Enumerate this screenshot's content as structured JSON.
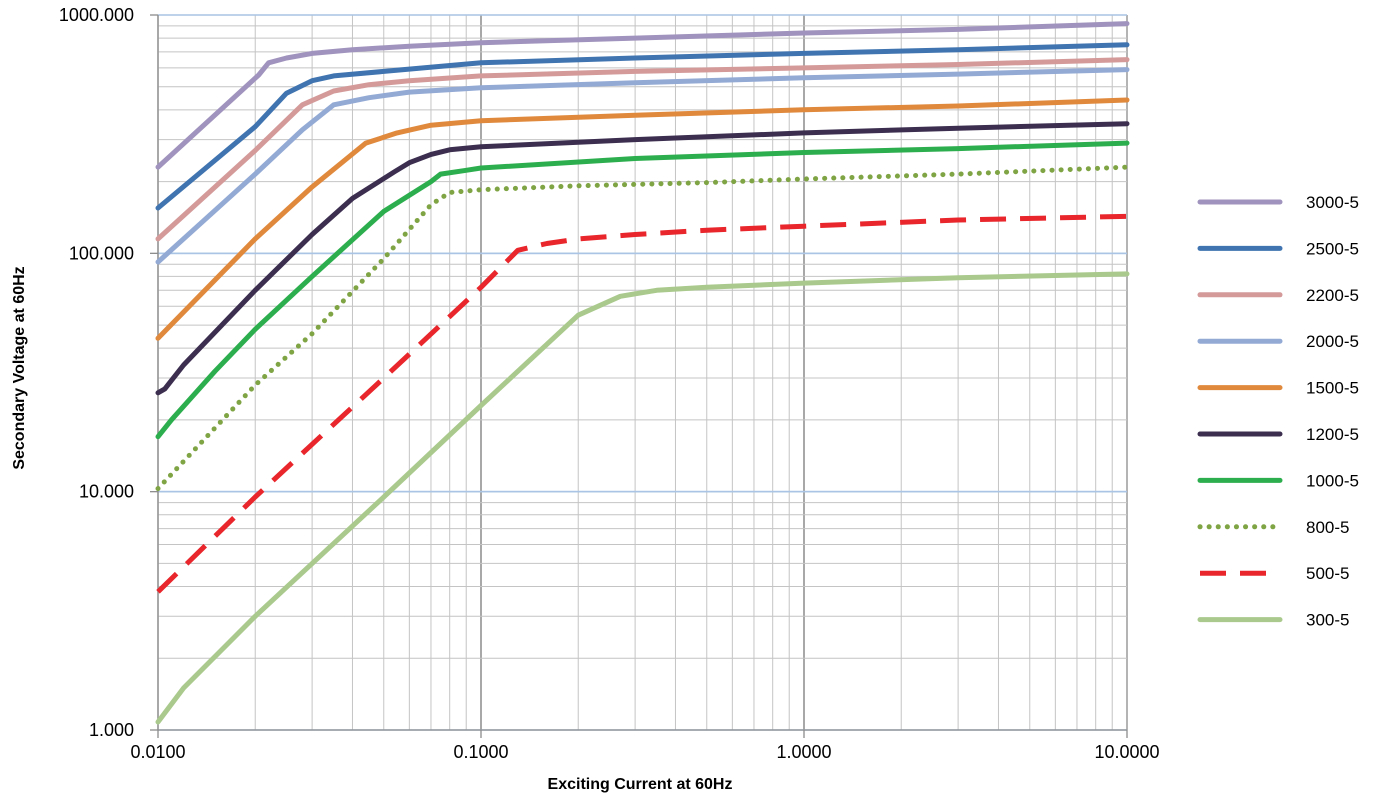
{
  "chart_data": {
    "type": "line",
    "title": "",
    "xlabel": "Exciting Current at 60Hz",
    "ylabel": "Secondary Voltage at 60Hz",
    "x_scale": "log",
    "y_scale": "log",
    "xlim": [
      0.01,
      10
    ],
    "ylim": [
      1,
      1000
    ],
    "x_ticks": [
      {
        "value": 0.01,
        "label": "0.0100"
      },
      {
        "value": 0.1,
        "label": "0.1000"
      },
      {
        "value": 1,
        "label": "1.0000"
      },
      {
        "value": 10,
        "label": "10.0000"
      }
    ],
    "y_ticks": [
      {
        "value": 1,
        "label": "1.000"
      },
      {
        "value": 10,
        "label": "10.000"
      },
      {
        "value": 100,
        "label": "100.000"
      },
      {
        "value": 1000,
        "label": "1000.000"
      }
    ],
    "grid": true,
    "legend_position": "right",
    "series": [
      {
        "name": "3000-5",
        "color": "#A093BD",
        "style": "solid",
        "x": [
          0.01,
          0.0205,
          0.022,
          0.025,
          0.03,
          0.04,
          0.06,
          0.1,
          0.3,
          1,
          3,
          10
        ],
        "y": [
          230,
          560,
          630,
          660,
          690,
          715,
          740,
          765,
          800,
          840,
          870,
          920
        ]
      },
      {
        "name": "2500-5",
        "color": "#3F74B0",
        "style": "solid",
        "x": [
          0.01,
          0.02,
          0.025,
          0.03,
          0.035,
          0.05,
          0.1,
          0.3,
          1,
          3,
          10
        ],
        "y": [
          155,
          340,
          470,
          530,
          555,
          580,
          630,
          660,
          690,
          715,
          750
        ]
      },
      {
        "name": "2200-5",
        "color": "#D49A9A",
        "style": "solid",
        "x": [
          0.01,
          0.02,
          0.028,
          0.035,
          0.045,
          0.06,
          0.1,
          0.3,
          1,
          3,
          10
        ],
        "y": [
          115,
          270,
          420,
          480,
          510,
          530,
          555,
          580,
          600,
          620,
          650
        ]
      },
      {
        "name": "2000-5",
        "color": "#93AAD5",
        "style": "solid",
        "x": [
          0.01,
          0.02,
          0.028,
          0.035,
          0.045,
          0.06,
          0.1,
          0.3,
          1,
          3,
          10
        ],
        "y": [
          92,
          215,
          330,
          420,
          450,
          475,
          495,
          520,
          545,
          565,
          590
        ]
      },
      {
        "name": "1500-5",
        "color": "#E0893C",
        "style": "solid",
        "x": [
          0.01,
          0.02,
          0.03,
          0.044,
          0.055,
          0.07,
          0.1,
          0.3,
          1,
          3,
          10
        ],
        "y": [
          44,
          115,
          190,
          290,
          320,
          345,
          360,
          380,
          400,
          415,
          440
        ]
      },
      {
        "name": "1200-5",
        "color": "#3B2E4F",
        "style": "solid",
        "x": [
          0.01,
          0.0105,
          0.012,
          0.02,
          0.03,
          0.04,
          0.054,
          0.06,
          0.07,
          0.08,
          0.1,
          0.3,
          1,
          3,
          10
        ],
        "y": [
          26,
          27,
          34,
          70,
          120,
          170,
          220,
          240,
          260,
          272,
          280,
          300,
          320,
          335,
          350
        ]
      },
      {
        "name": "1000-5",
        "color": "#2DAE4E",
        "style": "solid",
        "x": [
          0.01,
          0.011,
          0.015,
          0.02,
          0.03,
          0.05,
          0.07,
          0.075,
          0.09,
          0.1,
          0.3,
          1,
          3,
          10
        ],
        "y": [
          17,
          20,
          32,
          48,
          80,
          150,
          200,
          215,
          223,
          228,
          250,
          265,
          275,
          290
        ]
      },
      {
        "name": "800-5",
        "color": "#7FA444",
        "style": "dotted",
        "x": [
          0.01,
          0.02,
          0.03,
          0.05,
          0.07,
          0.08,
          0.1,
          0.2,
          0.5,
          1,
          3,
          10
        ],
        "y": [
          10.3,
          28,
          46,
          95,
          160,
          180,
          185,
          192,
          198,
          205,
          215,
          230
        ]
      },
      {
        "name": "500-5",
        "color": "#E8262B",
        "style": "dashed",
        "x": [
          0.01,
          0.02,
          0.05,
          0.1,
          0.13,
          0.16,
          0.2,
          0.3,
          0.5,
          1,
          3,
          10
        ],
        "y": [
          3.8,
          9.5,
          30,
          72,
          103,
          110,
          115,
          120,
          125,
          130,
          138,
          143
        ]
      },
      {
        "name": "300-5",
        "color": "#A9CA8C",
        "style": "solid",
        "x": [
          0.01,
          0.012,
          0.02,
          0.05,
          0.1,
          0.2,
          0.27,
          0.35,
          0.5,
          1,
          3,
          10
        ],
        "y": [
          1.08,
          1.5,
          3,
          9.5,
          23,
          55,
          66,
          70,
          72,
          75,
          79,
          82
        ]
      }
    ]
  }
}
